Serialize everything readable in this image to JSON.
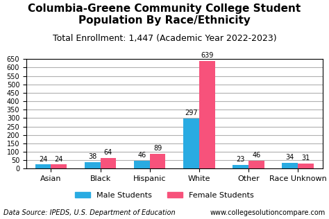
{
  "chart_data": {
    "type": "bar",
    "title": "Columbia-Greene Community College Student Population By Race/Ethnicity",
    "subtitle": "Total Enrollment: 1,447 (Academic Year 2022-2023)",
    "categories": [
      "Asian",
      "Black",
      "Hispanic",
      "White",
      "Other",
      "Race Unknown"
    ],
    "series": [
      {
        "name": "Male Students",
        "color": "#29ABE2",
        "values": [
          24,
          38,
          46,
          297,
          23,
          34
        ]
      },
      {
        "name": "Female Students",
        "color": "#F7527B",
        "values": [
          24,
          64,
          89,
          639,
          46,
          31
        ]
      }
    ],
    "ylim": [
      0,
      650
    ],
    "yticks": [
      0,
      50,
      100,
      150,
      200,
      250,
      300,
      350,
      400,
      450,
      500,
      550,
      600,
      650
    ],
    "grid": true,
    "legend": "upper center",
    "data_labels": true,
    "annotations": [
      "Data Source: IPEDS, U.S. Department of Education",
      "www.collegesolutioncompare.com"
    ]
  }
}
